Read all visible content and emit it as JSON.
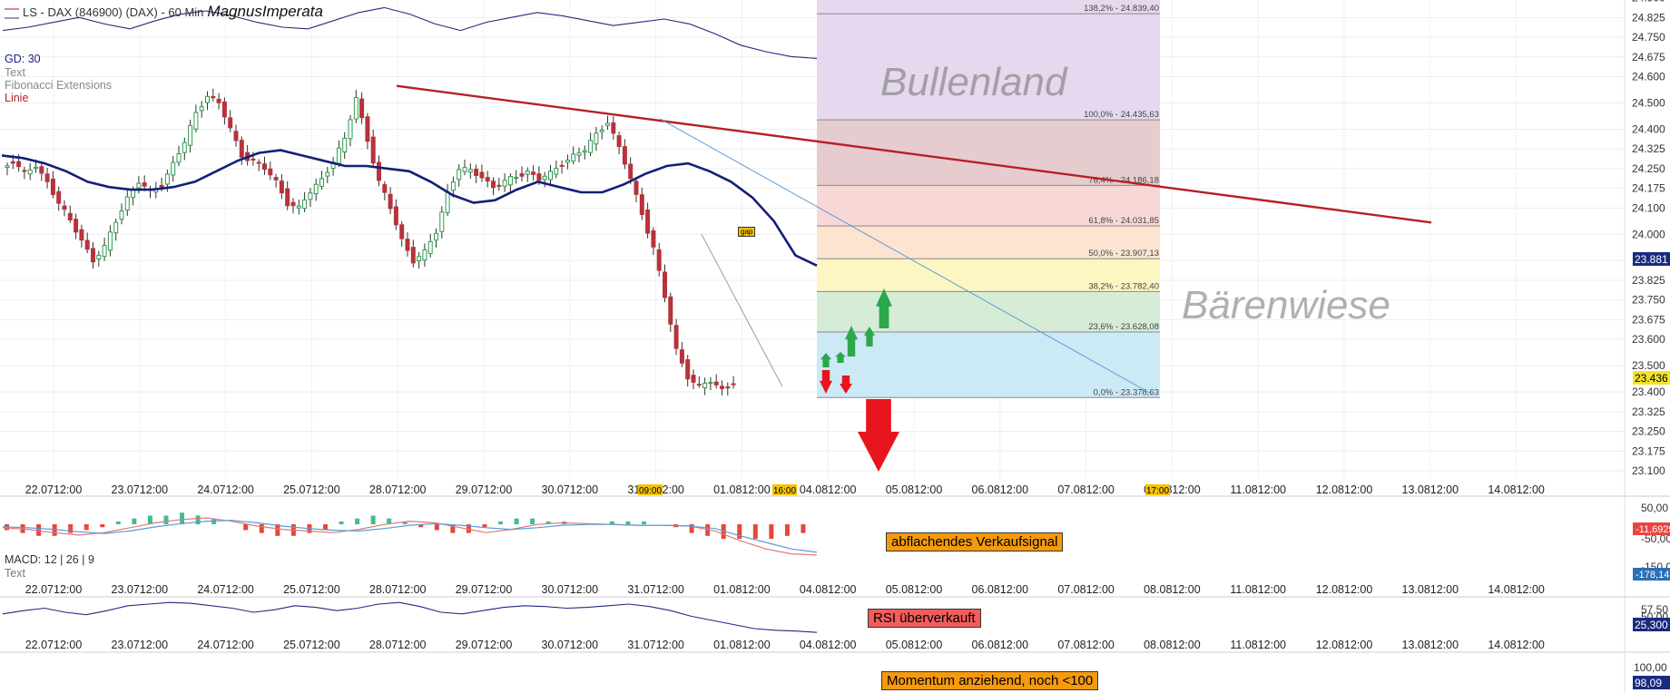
{
  "header": {
    "title": "LS - DAX (846900) (DAX) - 60 Min",
    "signature": "MagnusImperata"
  },
  "legend_main": {
    "gd": "GD: 30",
    "text": "Text",
    "fibo": "Fibonacci Extensions",
    "linie": "Linie"
  },
  "legend_macd": {
    "macd": "MACD: 12 | 26 | 9",
    "text": "Text"
  },
  "annotations": {
    "bullenland": "Bullenland",
    "baerenwiese": "Bärenwiese",
    "gap": "gap",
    "macd_note": "abflachendes Verkaufsignal",
    "rsi_note": "RSI überverkauft",
    "mom_note": "Momentum anziehend, noch <100"
  },
  "colors": {
    "up_candle": "#2e9c4e",
    "down_candle": "#b8323a",
    "moving_average": "#141e7a",
    "trend_line": "#b81f24",
    "helper_line": "#5b9bd5",
    "arrow_up": "#2aa84a",
    "arrow_down": "#e8141e",
    "note_fill": "#f59a0c",
    "note_red": "#f25c5c",
    "histogram_pos": "#3fbf8f",
    "histogram_neg": "#e8453c",
    "indicator_line": "#222a80"
  },
  "chart_data": [
    {
      "type": "candlestick",
      "title": "LS - DAX (846900) (DAX) - 60 Min",
      "ylim": [
        23060,
        24880
      ],
      "y_ticks": [
        "23.100",
        "23.175",
        "23.250",
        "23.325",
        "23.400",
        "23.500",
        "23.600",
        "23.675",
        "23.750",
        "23.825",
        "23.900",
        "24.000",
        "24.100",
        "24.175",
        "24.250",
        "24.325",
        "24.400",
        "24.500",
        "24.600",
        "24.675",
        "24.750",
        "24.825",
        "24.900"
      ],
      "x_ticks": [
        "22.0712:00",
        "23.0712:00",
        "24.0712:00",
        "25.0712:00",
        "28.0712:00",
        "29.0712:00",
        "30.0712:00",
        "31.0712:00",
        "01.0812:00",
        "04.0812:00",
        "05.0812:00",
        "06.0812:00",
        "07.0812:00",
        "08.0812:00",
        "11.0812:00",
        "12.0812:00",
        "13.0812:00",
        "14.0812:00"
      ],
      "time_badges": [
        "09:00",
        "16:00",
        "17:00"
      ],
      "price_badges": [
        "23.881",
        "23.436"
      ],
      "close_path": [
        24250,
        24280,
        24230,
        24260,
        24200,
        24120,
        24050,
        23980,
        23900,
        23950,
        24050,
        24140,
        24200,
        24160,
        24190,
        24270,
        24350,
        24460,
        24530,
        24500,
        24400,
        24300,
        24280,
        24250,
        24200,
        24120,
        24100,
        24160,
        24210,
        24280,
        24360,
        24520,
        24360,
        24200,
        24100,
        23980,
        23900,
        23930,
        24010,
        24160,
        24250,
        24240,
        24220,
        24180,
        24200,
        24220,
        24240,
        24210,
        24230,
        24270,
        24300,
        24320,
        24380,
        24430,
        24330,
        24210,
        24080,
        23950,
        23760,
        23560,
        23460,
        23420,
        23440,
        23410,
        23436
      ],
      "moving_average": [
        24300,
        24290,
        24270,
        24240,
        24200,
        24180,
        24170,
        24170,
        24180,
        24200,
        24240,
        24280,
        24310,
        24320,
        24300,
        24280,
        24260,
        24260,
        24250,
        24240,
        24200,
        24150,
        24120,
        24130,
        24170,
        24200,
        24180,
        24160,
        24160,
        24190,
        24230,
        24260,
        24270,
        24240,
        24200,
        24140,
        24050,
        23920,
        23881
      ],
      "fibonacci": [
        {
          "ratio": "0,0%",
          "value": 23378.63,
          "label": "0,0% - 23.378,63"
        },
        {
          "ratio": "23,6%",
          "value": 23628.08,
          "label": "23,6% - 23.628,08"
        },
        {
          "ratio": "38,2%",
          "value": 23782.4,
          "label": "38,2% - 23.782,40"
        },
        {
          "ratio": "50,0%",
          "value": 23907.13,
          "label": "50,0% - 23.907,13"
        },
        {
          "ratio": "61,8%",
          "value": 24031.85,
          "label": "61,8% - 24.031,85"
        },
        {
          "ratio": "76,4%",
          "value": 24186.18,
          "label": "76,4% - 24.186,18"
        },
        {
          "ratio": "100,0%",
          "value": 24435.63,
          "label": "100,0% - 24.435,63"
        },
        {
          "ratio": "138,2%",
          "value": 24839.4,
          "label": "138,2% - 24.839,40"
        }
      ],
      "trend_line": {
        "from_value": 24565,
        "to_value": 24045
      },
      "helper_line": {
        "from_value": 24440,
        "to_value": 23390
      }
    },
    {
      "type": "bar",
      "name": "MACD",
      "y_ticks": [
        "50,00",
        "-50,00",
        "-150,00"
      ],
      "value_badges": [
        "-11,6925",
        "-178,14"
      ],
      "histogram": [
        -2,
        -3,
        -4,
        -4,
        -3,
        -2,
        -1,
        1,
        2,
        3,
        3,
        4,
        3,
        2,
        0,
        -2,
        -3,
        -4,
        -4,
        -3,
        -2,
        1,
        2,
        3,
        2,
        1,
        -1,
        -2,
        -3,
        -3,
        -1,
        1,
        2,
        2,
        1,
        1,
        0,
        0,
        1,
        1,
        1,
        0,
        -1,
        -3,
        -4,
        -5,
        -5,
        -5,
        -5,
        -4,
        -3
      ],
      "macd_line": [
        -10,
        -20,
        -40,
        -55,
        -40,
        -10,
        20,
        40,
        50,
        30,
        0,
        -20,
        -30,
        -40,
        -20,
        10,
        30,
        20,
        -10,
        -40,
        -20,
        10,
        20,
        15,
        10,
        5,
        5,
        0,
        -30,
        -90,
        -140,
        -170,
        -178
      ],
      "signal_line": [
        -5,
        -10,
        -20,
        -35,
        -45,
        -30,
        -5,
        15,
        30,
        35,
        20,
        0,
        -15,
        -25,
        -30,
        -15,
        5,
        15,
        5,
        -10,
        -20,
        -10,
        5,
        10,
        10,
        5,
        5,
        0,
        -15,
        -60,
        -100,
        -140,
        -160
      ]
    },
    {
      "type": "line",
      "name": "RSI",
      "y_ticks": [
        "57,50",
        "50,00"
      ],
      "value_badges": [
        "25,300"
      ],
      "values": [
        48,
        52,
        55,
        50,
        47,
        52,
        58,
        60,
        62,
        61,
        58,
        55,
        50,
        53,
        58,
        56,
        52,
        55,
        60,
        62,
        57,
        50,
        48,
        52,
        56,
        58,
        57,
        55,
        56,
        58,
        60,
        57,
        52,
        45,
        40,
        35,
        30,
        28,
        27,
        25.3
      ]
    },
    {
      "type": "line",
      "name": "Momentum",
      "y_ticks": [
        "100,00"
      ],
      "value_badges": [
        "98,09"
      ],
      "values": [
        99.8,
        100.0,
        100.3,
        100.6,
        100.2,
        99.9,
        100.4,
        100.8,
        101.0,
        100.7,
        100.3,
        100.0,
        99.9,
        100.4,
        100.9,
        101.2,
        100.8,
        100.2,
        99.8,
        100.3,
        100.6,
        100.9,
        100.7,
        100.4,
        100.1,
        100.3,
        100.5,
        100.2,
        99.6,
        98.9,
        98.5,
        98.2,
        98.09
      ]
    }
  ]
}
